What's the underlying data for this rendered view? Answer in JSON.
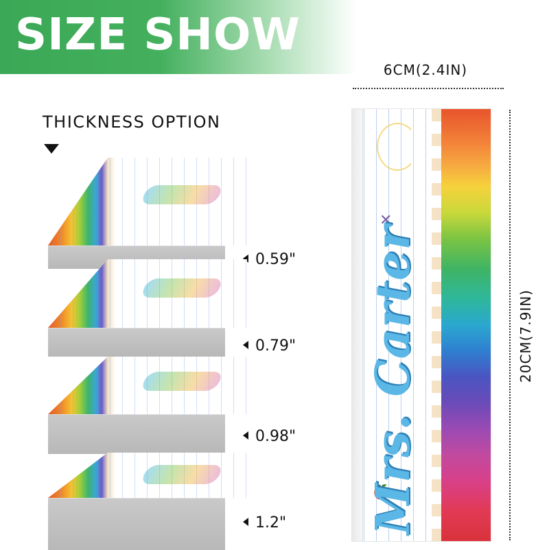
{
  "banner": {
    "title": "SIZE SHOW"
  },
  "dimensions": {
    "width": "6CM(2.4IN)",
    "height": "20CM(7.9IN)"
  },
  "thickness": {
    "title": "THICKNESS  OPTION",
    "options": [
      "0.59\"",
      "0.79\"",
      "0.98\"",
      "1.2\""
    ]
  },
  "product": {
    "name": "Mrs. Carter"
  }
}
